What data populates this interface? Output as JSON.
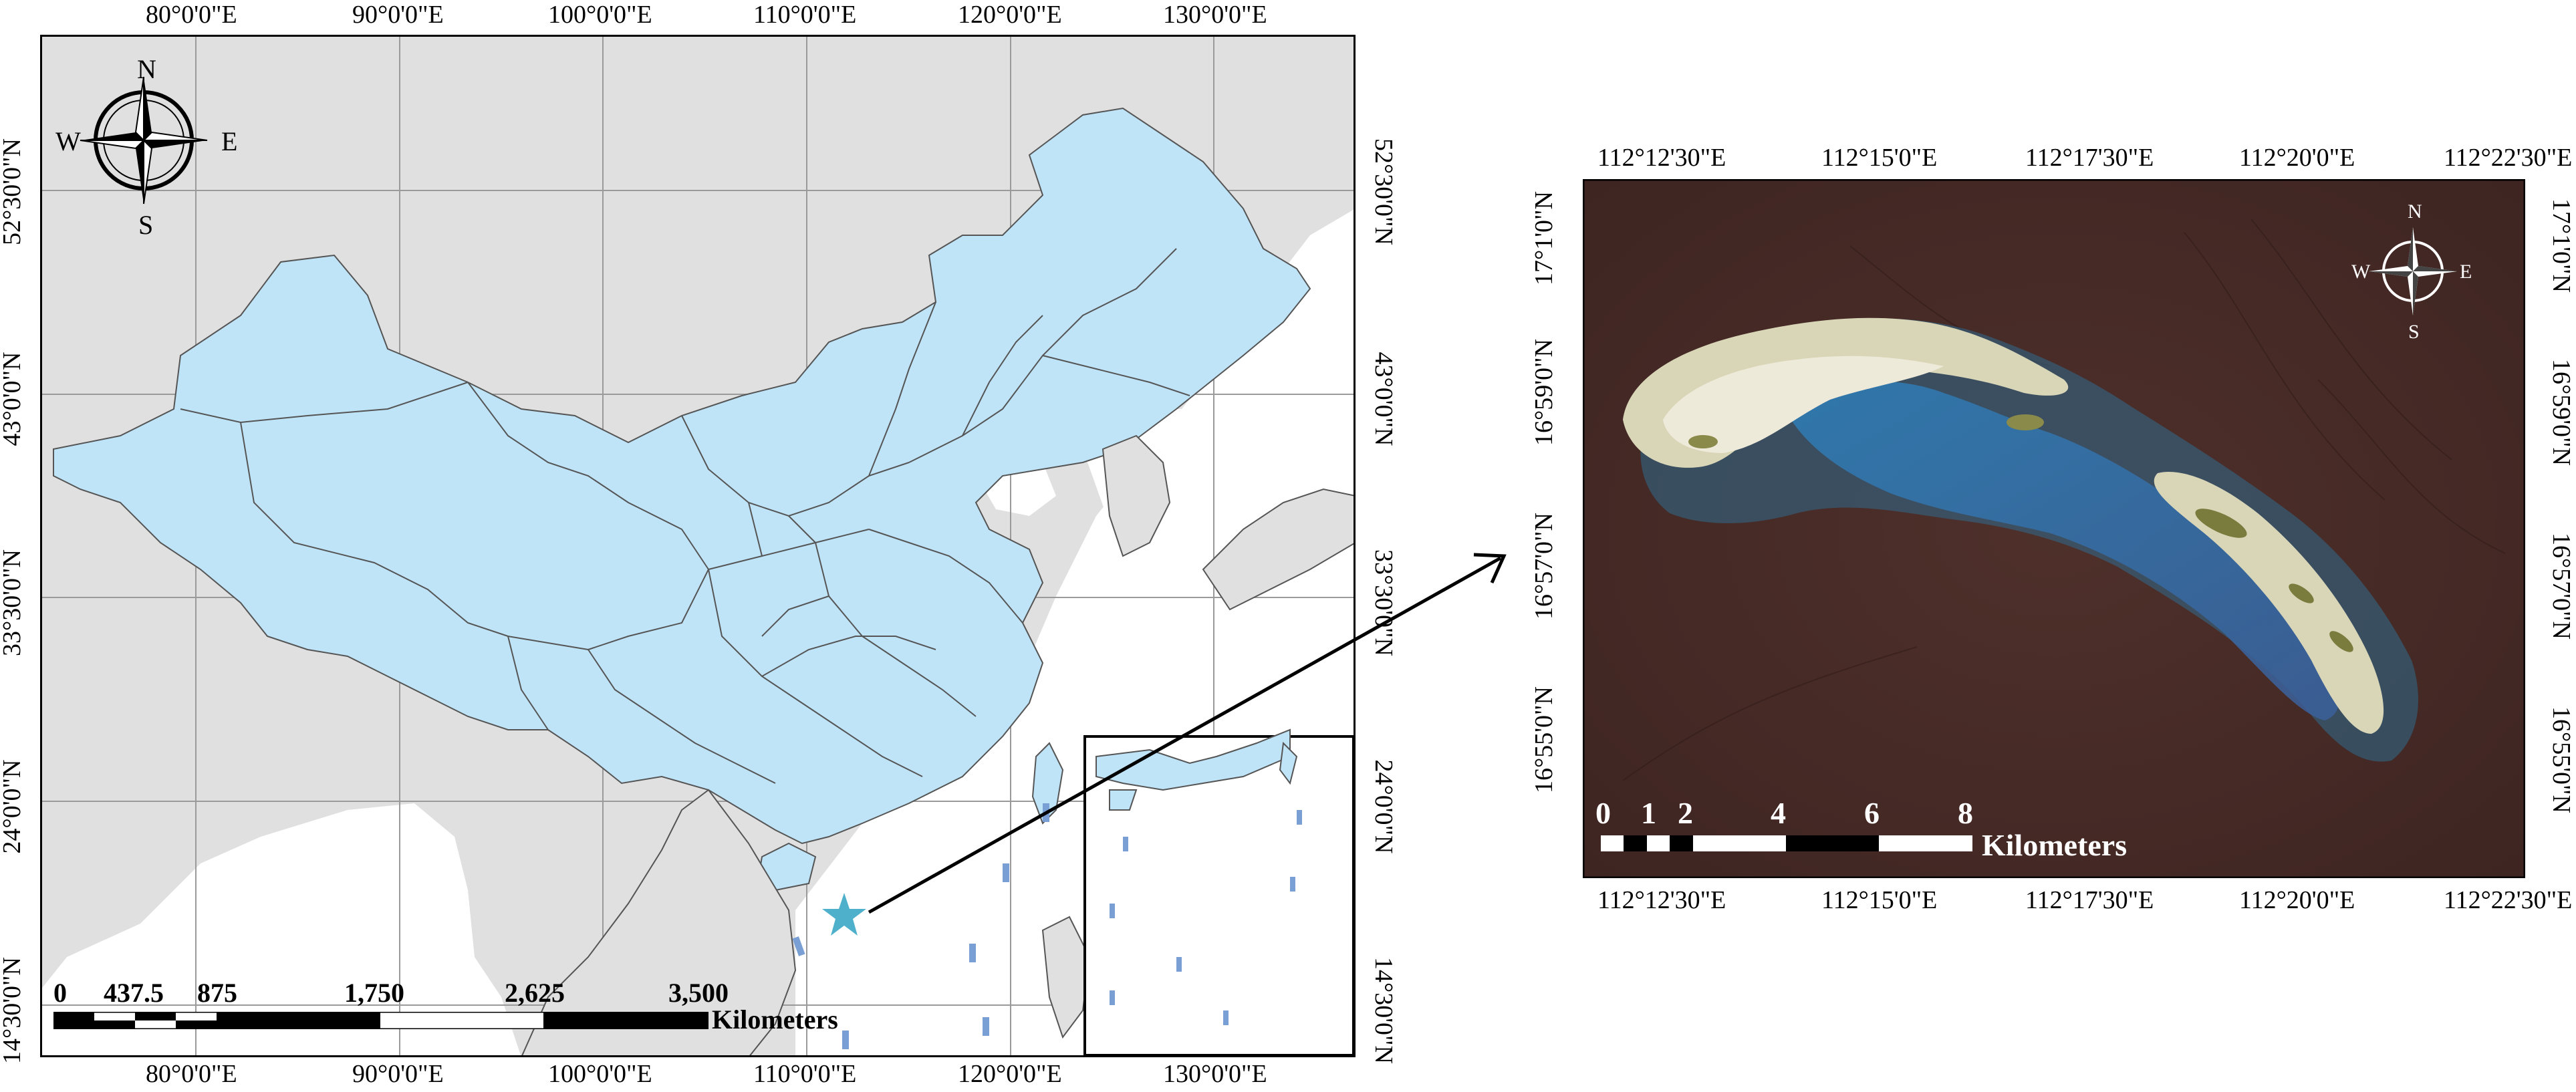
{
  "left_map": {
    "top_lon_labels": [
      "80°0'0\"E",
      "90°0'0\"E",
      "100°0'0\"E",
      "110°0'0\"E",
      "120°0'0\"E",
      "130°0'0\"E"
    ],
    "bottom_lon_labels": [
      "80°0'0\"E",
      "90°0'0\"E",
      "100°0'0\"E",
      "110°0'0\"E",
      "120°0'0\"E",
      "130°0'0\"E"
    ],
    "left_lat_labels": [
      "52°30'0\"N",
      "43°0'0\"N",
      "33°30'0\"N",
      "24°0'0\"N",
      "14°30'0\"N"
    ],
    "right_lat_labels": [
      "52°30'0\"N",
      "43°0'0\"N",
      "33°30'0\"N",
      "24°0'0\"N",
      "14°30'0\"N"
    ],
    "compass": {
      "n": "N",
      "s": "S",
      "e": "E",
      "w": "W"
    },
    "scale_bar": {
      "ticks": [
        "0",
        "437.5",
        "875",
        "1,750",
        "2,625",
        "3,500"
      ],
      "unit": "Kilometers"
    },
    "colors": {
      "china": "#bfe3f7",
      "land": "#e0e0e0",
      "sea": "#ffffff",
      "star": "#4fb0cc"
    },
    "marker_icon": "star-icon"
  },
  "right_map": {
    "top_lon_labels": [
      "112°12'30\"E",
      "112°15'0\"E",
      "112°17'30\"E",
      "112°20'0\"E",
      "112°22'30\"E"
    ],
    "bottom_lon_labels": [
      "112°12'30\"E",
      "112°15'0\"E",
      "112°17'30\"E",
      "112°20'0\"E",
      "112°22'30\"E"
    ],
    "left_lat_labels": [
      "17°1'0\"N",
      "16°59'0\"N",
      "16°57'0\"N",
      "16°55'0\"N"
    ],
    "right_lat_labels": [
      "17°1'0\"N",
      "16°59'0\"N",
      "16°57'0\"N",
      "16°55'0\"N"
    ],
    "compass": {
      "n": "N",
      "s": "S",
      "e": "E",
      "w": "W"
    },
    "scale_bar": {
      "ticks": [
        "0",
        "1",
        "2",
        "4",
        "6",
        "8"
      ],
      "unit": "Kilometers"
    },
    "colors": {
      "sea": "#4a2c28",
      "reef": "#d9d6b8",
      "lagoon": "#3e8fc0"
    }
  }
}
